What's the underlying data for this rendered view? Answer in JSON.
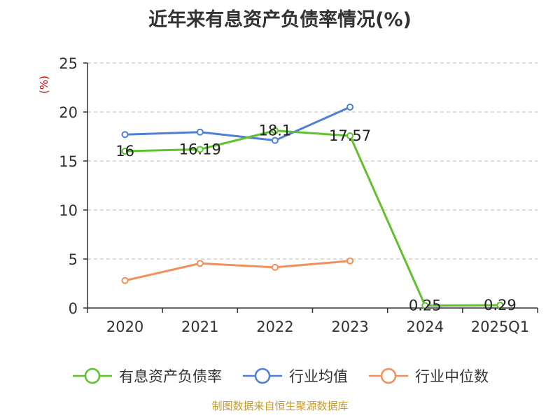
{
  "chart_data": {
    "type": "line",
    "title": "近年来有息资产负债率情况(%)",
    "ylabel": "(%)",
    "categories": [
      "2020",
      "2021",
      "2022",
      "2023",
      "2024",
      "2025Q1"
    ],
    "ylim": [
      0,
      25
    ],
    "yticks": [
      0,
      5,
      10,
      15,
      20,
      25
    ],
    "grid": true,
    "legend_position": "bottom",
    "series": [
      {
        "name": "有息资产负债率",
        "color": "#5dc22c",
        "values": [
          16,
          16.19,
          18.1,
          17.57,
          0.25,
          0.29
        ],
        "labels": [
          "16",
          "16.19",
          "18.1",
          "17.57",
          "0.25",
          "0.29"
        ]
      },
      {
        "name": "行业均值",
        "color": "#4f7fd6",
        "values": [
          17.7,
          17.95,
          17.1,
          20.5,
          null,
          null
        ]
      },
      {
        "name": "行业中位数",
        "color": "#f28f5c",
        "values": [
          2.8,
          4.55,
          4.15,
          4.8,
          null,
          null
        ]
      }
    ]
  },
  "footer": "制图数据来自恒生聚源数据库"
}
